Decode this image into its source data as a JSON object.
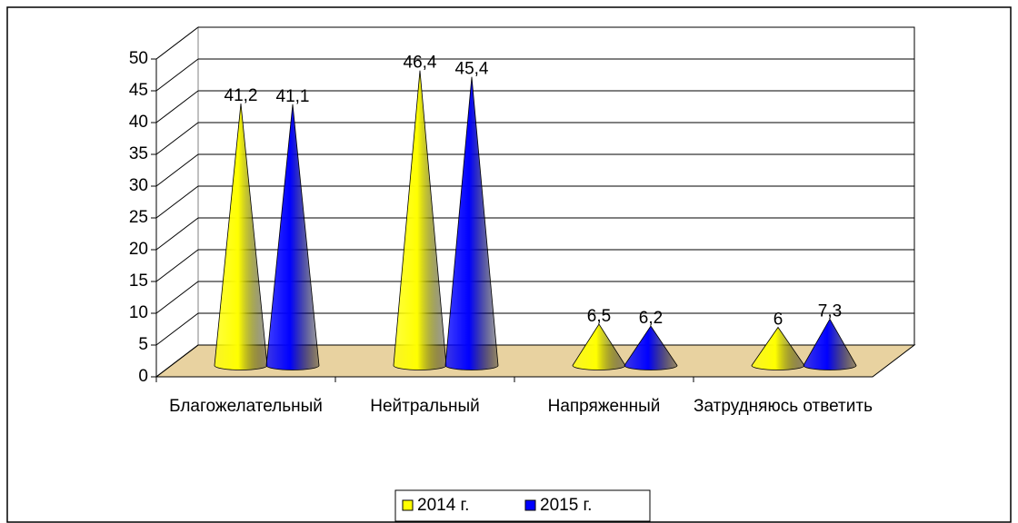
{
  "chart_data": {
    "type": "bar3d_cone",
    "categories": [
      "Благожелательный",
      "Нейтральный",
      "Напряженный",
      "Затрудняюсь ответить"
    ],
    "series": [
      {
        "name": "2014 г.",
        "color": "#ffff00",
        "values": [
          41.2,
          46.4,
          6.5,
          6
        ],
        "value_labels": [
          "41,2",
          "46,4",
          "6,5",
          "6"
        ]
      },
      {
        "name": "2015 г.",
        "color": "#0000ff",
        "values": [
          41.1,
          45.4,
          6.2,
          7.3
        ],
        "value_labels": [
          "41,1",
          "45,4",
          "6,2",
          "7,3"
        ]
      }
    ],
    "ylim": [
      0,
      50
    ],
    "yticks": [
      0,
      5,
      10,
      15,
      20,
      25,
      30,
      35,
      40,
      45,
      50
    ],
    "grid": true,
    "legend": "bottom"
  }
}
